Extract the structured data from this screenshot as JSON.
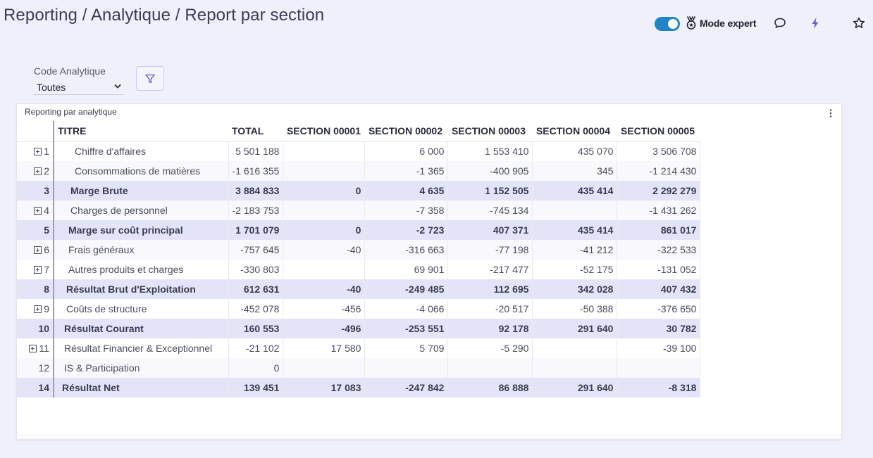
{
  "page": {
    "title": "Reporting / Analytique / Report par section"
  },
  "top_actions": {
    "mode_label": "Mode expert",
    "toggle_on": true,
    "accent_color": "#1f84c6",
    "icons": [
      "medal-icon",
      "comment-icon",
      "lightning-icon",
      "star-icon"
    ]
  },
  "filter": {
    "label": "Code Analytique",
    "selected": "Toutes"
  },
  "panel": {
    "title": "Reporting par analytique",
    "columns": [
      "TITRE",
      "TOTAL",
      "SECTION 00001",
      "SECTION 00002",
      "SECTION 00003",
      "SECTION 00004",
      "SECTION 00005"
    ],
    "rows": [
      {
        "idx": "1",
        "expandable": true,
        "subtotal": false,
        "indent": 3,
        "title": "Chiffre d'affaires",
        "values": [
          "5 501 188",
          "",
          "6 000",
          "1 553 410",
          "435 070",
          "3 506 708"
        ]
      },
      {
        "idx": "2",
        "expandable": true,
        "subtotal": false,
        "indent": 3,
        "title": "Consommations de matières",
        "values": [
          "-1 616 355",
          "",
          "-1 365",
          "-400 905",
          "345",
          "-1 214 430"
        ]
      },
      {
        "idx": "3",
        "expandable": false,
        "subtotal": true,
        "indent": 2,
        "title": "Marge Brute",
        "values": [
          "3 884 833",
          "0",
          "4 635",
          "1 152 505",
          "435 414",
          "2 292 279"
        ]
      },
      {
        "idx": "4",
        "expandable": true,
        "subtotal": false,
        "indent": 2,
        "title": "Charges de personnel",
        "values": [
          "-2 183 753",
          "",
          "-7 358",
          "-745 134",
          "",
          "-1 431 262"
        ]
      },
      {
        "idx": "5",
        "expandable": false,
        "subtotal": true,
        "indent": 1,
        "title": "Marge sur coût principal",
        "values": [
          "1 701 079",
          "0",
          "-2 723",
          "407 371",
          "435 414",
          "861 017"
        ]
      },
      {
        "idx": "6",
        "expandable": true,
        "subtotal": false,
        "indent": 1,
        "title": "Frais généraux",
        "values": [
          "-757 645",
          "-40",
          "-316 663",
          "-77 198",
          "-41 212",
          "-322 533"
        ]
      },
      {
        "idx": "7",
        "expandable": true,
        "subtotal": false,
        "indent": 1,
        "title": "Autres produits et charges",
        "values": [
          "-330 803",
          "",
          "69 901",
          "-217 477",
          "-52 175",
          "-131 052"
        ]
      },
      {
        "idx": "8",
        "expandable": false,
        "subtotal": true,
        "indent": 0,
        "title": "Résultat Brut d'Exploitation",
        "values": [
          "612 631",
          "-40",
          "-249 485",
          "112 695",
          "342 028",
          "407 432"
        ]
      },
      {
        "idx": "9",
        "expandable": true,
        "subtotal": false,
        "indent": 0,
        "title": "Coûts de structure",
        "values": [
          "-452 078",
          "-456",
          "-4 066",
          "-20 517",
          "-50 388",
          "-376 650"
        ]
      },
      {
        "idx": "10",
        "expandable": false,
        "subtotal": true,
        "indent": -1,
        "title": "Résultat Courant",
        "values": [
          "160 553",
          "-496",
          "-253 551",
          "92 178",
          "291 640",
          "30 782"
        ]
      },
      {
        "idx": "11",
        "expandable": true,
        "subtotal": false,
        "indent": -1,
        "title": "Résultat Financier & Exceptionnel",
        "values": [
          "-21 102",
          "17 580",
          "5 709",
          "-5 290",
          "",
          "-39 100"
        ]
      },
      {
        "idx": "12",
        "expandable": false,
        "subtotal": false,
        "indent": -1,
        "title": "IS & Participation",
        "values": [
          "0",
          "",
          "",
          "",
          "",
          ""
        ]
      },
      {
        "idx": "14",
        "expandable": false,
        "subtotal": true,
        "indent": -2,
        "title": "Résultat Net",
        "values": [
          "139 451",
          "17 083",
          "-247 842",
          "86 888",
          "291 640",
          "-8 318"
        ]
      }
    ]
  }
}
